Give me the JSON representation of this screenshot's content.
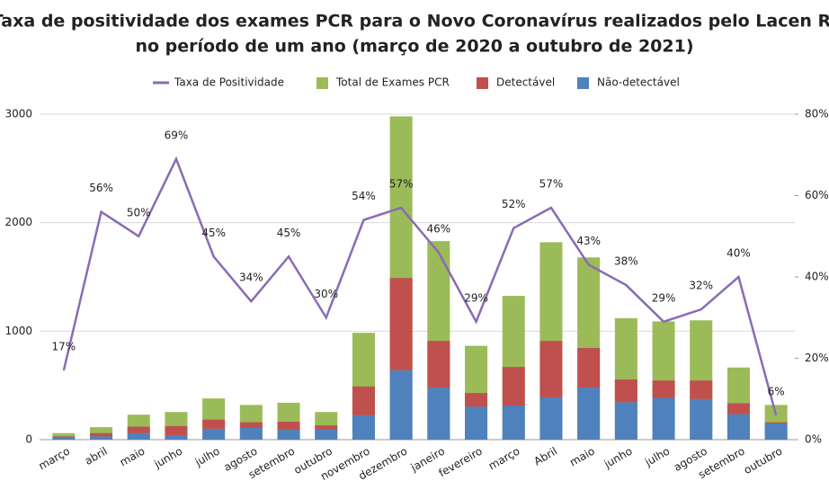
{
  "chart_data": {
    "type": "bar",
    "title": "Taxa de positividade dos exames PCR para o Novo Coronavírus realizados pelo Lacen RJ",
    "subtitle": "no período de um ano (março de 2020 a outubro de 2021)",
    "categories": [
      "março",
      "abril",
      "maio",
      "junho",
      "julho",
      "agosto",
      "setembro",
      "outubro",
      "novembro",
      "dezembro",
      "janeiro",
      "fevereiro",
      "março",
      "Abril",
      "maio",
      "junho",
      "julho",
      "agosto",
      "setembro",
      "outubro"
    ],
    "series": [
      {
        "name": "Taxa de Positividade",
        "type": "line",
        "axis": "y2",
        "color": "#8a6bb3",
        "values": [
          17,
          56,
          50,
          69,
          45,
          34,
          45,
          30,
          54,
          57,
          46,
          29,
          52,
          57,
          43,
          38,
          29,
          32,
          40,
          6
        ],
        "value_labels": [
          "17%",
          "56%",
          "50%",
          "69%",
          "45%",
          "34%",
          "45%",
          "30%",
          "54%",
          "57%",
          "46%",
          "29%",
          "52%",
          "57%",
          "43%",
          "38%",
          "29%",
          "32%",
          "40%",
          "6%"
        ]
      },
      {
        "name": "Total de Exames PCR",
        "type": "bar",
        "color": "#9bbb59",
        "values": [
          60,
          115,
          230,
          255,
          380,
          320,
          340,
          255,
          985,
          2980,
          1830,
          865,
          1325,
          1820,
          1680,
          1120,
          1090,
          1100,
          665,
          320
        ]
      },
      {
        "name": "Detectável",
        "type": "bar",
        "stacked": true,
        "color": "#c0504d",
        "values": [
          5,
          30,
          60,
          85,
          85,
          52,
          75,
          40,
          265,
          850,
          430,
          125,
          355,
          520,
          365,
          210,
          160,
          170,
          100,
          10
        ]
      },
      {
        "name": "Não-detectável",
        "type": "bar",
        "stacked": true,
        "color": "#4f81bd",
        "values": [
          25,
          30,
          60,
          40,
          100,
          108,
          90,
          92,
          225,
          640,
          480,
          305,
          315,
          390,
          480,
          345,
          385,
          375,
          235,
          150
        ]
      }
    ],
    "ylim": [
      0,
      3000
    ],
    "yticks": [
      0,
      1000,
      2000,
      3000
    ],
    "y2lim": [
      0,
      80
    ],
    "y2ticks": [
      {
        "value": 0,
        "label": "0%"
      },
      {
        "value": 20,
        "label": "20%"
      },
      {
        "value": 40,
        "label": "40%"
      },
      {
        "value": 60,
        "label": "60%"
      },
      {
        "value": 80,
        "label": "80%"
      }
    ],
    "grid": true
  }
}
